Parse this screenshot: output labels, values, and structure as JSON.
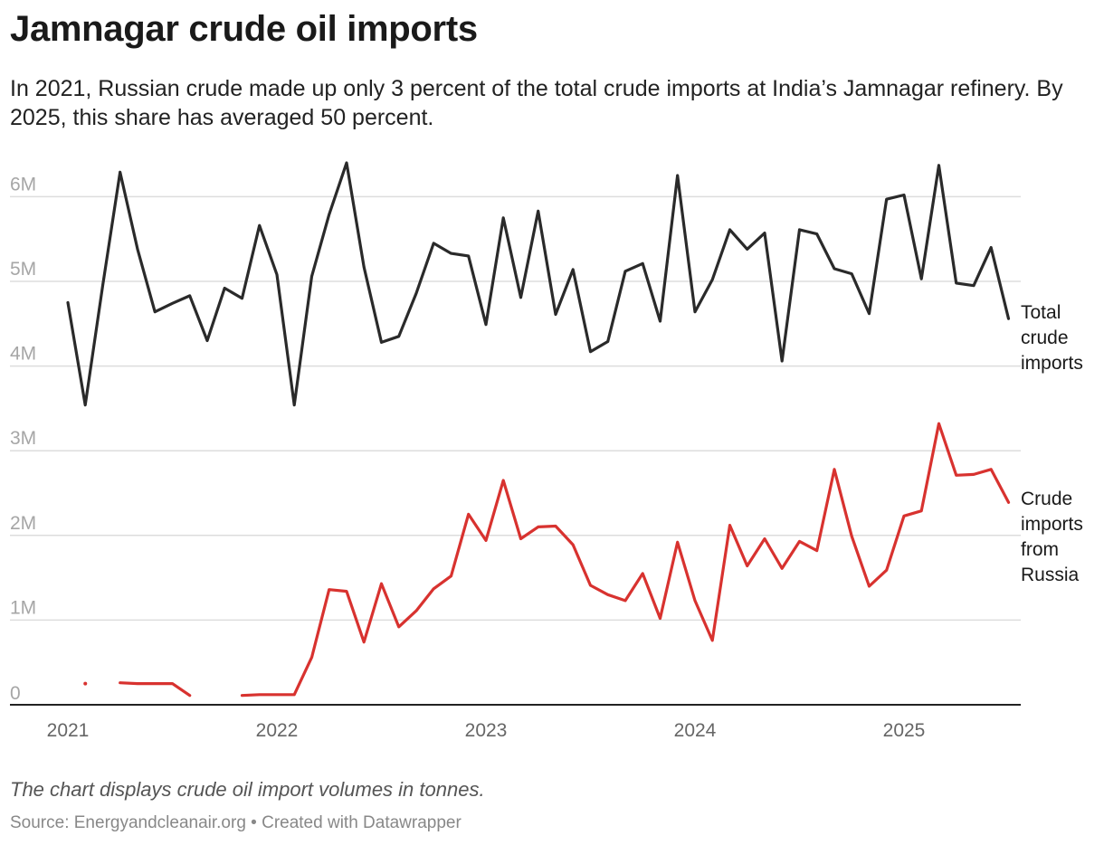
{
  "title": "Jamnagar crude oil imports",
  "subtitle": "In 2021, Russian crude made up only 3 percent of the total crude imports at India’s Jamnagar refinery. By 2025, this share has averaged 50 percent.",
  "note": "The chart displays crude oil import volumes in tonnes.",
  "source": "Source: Energyandcleanair.org • Created with Datawrapper",
  "colors": {
    "total": "#2a2a2a",
    "russia": "#d8322f",
    "grid": "#dddddd",
    "axis": "#222222"
  },
  "chart_data": {
    "type": "line",
    "title": "Jamnagar crude oil imports",
    "xlabel": "",
    "ylabel": "",
    "unit": "tonnes",
    "x_start": 2021.0,
    "x_step_years": 0.08333,
    "xlim": [
      2020.95,
      2025.7
    ],
    "ylim": [
      0,
      6500000
    ],
    "grid": true,
    "x_ticks": [
      2021,
      2022,
      2023,
      2024,
      2025
    ],
    "x_tick_labels": [
      "2021",
      "2022",
      "2023",
      "2024",
      "2025"
    ],
    "y_ticks": [
      0,
      1000000,
      2000000,
      3000000,
      4000000,
      5000000,
      6000000
    ],
    "y_tick_labels": [
      "0",
      "1M",
      "2M",
      "3M",
      "4M",
      "5M",
      "6M"
    ],
    "series": [
      {
        "name": "Total crude imports",
        "label_lines": [
          "Total",
          "crude",
          "imports"
        ],
        "values": [
          4750000,
          3540000,
          4950000,
          6290000,
          5380000,
          4640000,
          4740000,
          4830000,
          4300000,
          4920000,
          4800000,
          5660000,
          5080000,
          3540000,
          5060000,
          5790000,
          6400000,
          5170000,
          4280000,
          4350000,
          4860000,
          5450000,
          5330000,
          5300000,
          4490000,
          5750000,
          4810000,
          5830000,
          4610000,
          5140000,
          4170000,
          4290000,
          5120000,
          5210000,
          4530000,
          6250000,
          4640000,
          5020000,
          5610000,
          5380000,
          5570000,
          4060000,
          5610000,
          5560000,
          5150000,
          5090000,
          4620000,
          5970000,
          6020000,
          5030000,
          6370000,
          4980000,
          4950000,
          5400000,
          4560000
        ]
      },
      {
        "name": "Crude imports from Russia",
        "label_lines": [
          "Crude",
          "imports",
          "from",
          "Russia"
        ],
        "values": [
          null,
          250000,
          null,
          260000,
          250000,
          250000,
          250000,
          110000,
          null,
          null,
          110000,
          120000,
          120000,
          120000,
          560000,
          1360000,
          1340000,
          740000,
          1430000,
          920000,
          1110000,
          1370000,
          1520000,
          2250000,
          1940000,
          2650000,
          1960000,
          2100000,
          2110000,
          1890000,
          1410000,
          1300000,
          1230000,
          1550000,
          1020000,
          1920000,
          1230000,
          760000,
          2120000,
          1640000,
          1960000,
          1610000,
          1930000,
          1820000,
          2780000,
          1990000,
          1400000,
          1590000,
          2230000,
          2290000,
          3320000,
          2710000,
          2720000,
          2780000,
          2390000
        ]
      }
    ]
  }
}
